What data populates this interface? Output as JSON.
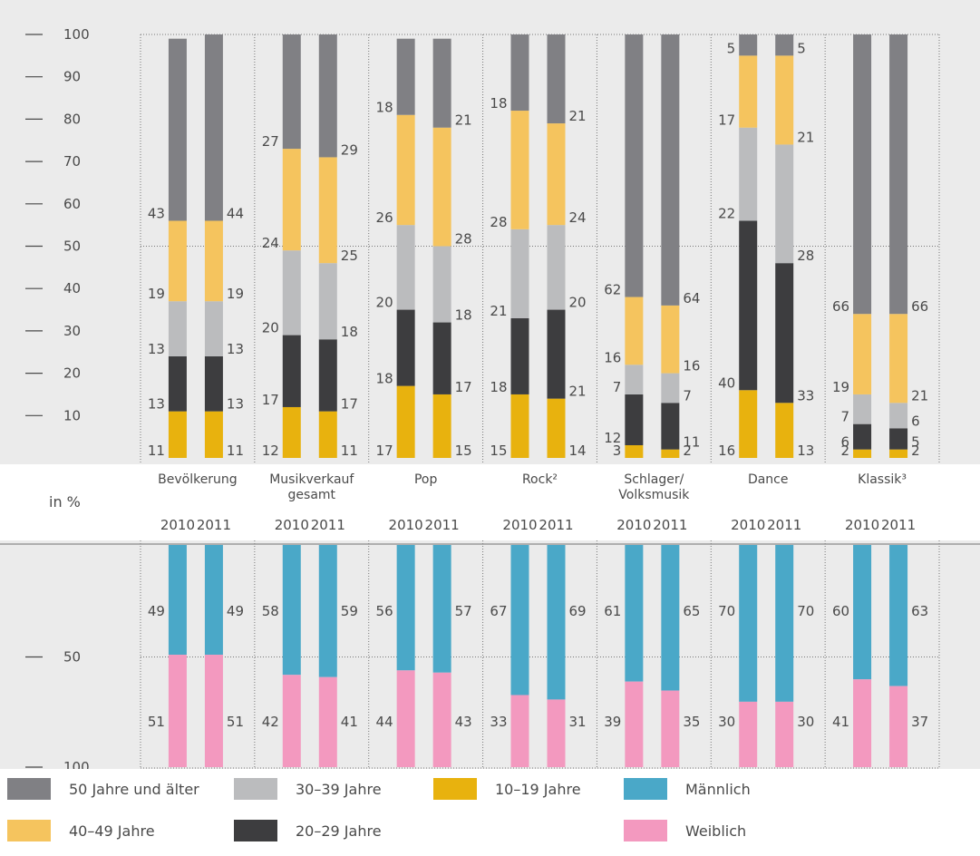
{
  "chart_data": {
    "type": "bar",
    "ylabel": "in %",
    "ylim": [
      0,
      100
    ],
    "age_yticks": [
      "100",
      "90",
      "80",
      "70",
      "60",
      "50",
      "40",
      "30",
      "20",
      "10"
    ],
    "gender_yticks": [
      "50",
      "100"
    ],
    "years": [
      "2010",
      "2011"
    ],
    "groups": [
      {
        "name": "Bevölkerung",
        "lines": [
          "Bevölkerung"
        ]
      },
      {
        "name": "Musikverkauf gesamt",
        "lines": [
          "Musikverkauf",
          "gesamt"
        ]
      },
      {
        "name": "Pop",
        "lines": [
          "Pop"
        ]
      },
      {
        "name": "Rock²",
        "lines": [
          "Rock²"
        ]
      },
      {
        "name": "Schlager/ Volksmusik",
        "lines": [
          "Schlager/",
          "Volksmusik"
        ]
      },
      {
        "name": "Dance",
        "lines": [
          "Dance"
        ]
      },
      {
        "name": "Klassik³",
        "lines": [
          "Klassik³"
        ]
      }
    ],
    "age_series": [
      {
        "name": "10–19 Jahre",
        "color": "#e8b20e",
        "values": [
          [
            11,
            11
          ],
          [
            12,
            11
          ],
          [
            17,
            15
          ],
          [
            15,
            14
          ],
          [
            3,
            2
          ],
          [
            16,
            13
          ],
          [
            2,
            2
          ]
        ]
      },
      {
        "name": "20–29 Jahre",
        "color": "#3d3d3f",
        "values": [
          [
            13,
            13
          ],
          [
            17,
            17
          ],
          [
            18,
            17
          ],
          [
            18,
            21
          ],
          [
            12,
            11
          ],
          [
            40,
            33
          ],
          [
            6,
            5
          ]
        ]
      },
      {
        "name": "30–39 Jahre",
        "color": "#bbbcbe",
        "values": [
          [
            13,
            13
          ],
          [
            20,
            18
          ],
          [
            20,
            18
          ],
          [
            21,
            20
          ],
          [
            7,
            7
          ],
          [
            22,
            28
          ],
          [
            7,
            6
          ]
        ]
      },
      {
        "name": "40–49 Jahre",
        "color": "#f5c45e",
        "values": [
          [
            19,
            19
          ],
          [
            24,
            25
          ],
          [
            26,
            28
          ],
          [
            28,
            24
          ],
          [
            16,
            16
          ],
          [
            17,
            21
          ],
          [
            19,
            21
          ]
        ]
      },
      {
        "name": "50 Jahre und älter",
        "color": "#808084",
        "values": [
          [
            43,
            44
          ],
          [
            27,
            29
          ],
          [
            18,
            21
          ],
          [
            18,
            21
          ],
          [
            62,
            64
          ],
          [
            5,
            5
          ],
          [
            66,
            66
          ]
        ]
      }
    ],
    "gender_series": [
      {
        "name": "Männlich",
        "color": "#4aa8c8",
        "values": [
          [
            49,
            49
          ],
          [
            58,
            59
          ],
          [
            56,
            57
          ],
          [
            67,
            69
          ],
          [
            61,
            65
          ],
          [
            70,
            70
          ],
          [
            60,
            63
          ]
        ]
      },
      {
        "name": "Weiblich",
        "color": "#f399bf",
        "values": [
          [
            51,
            51
          ],
          [
            42,
            41
          ],
          [
            44,
            43
          ],
          [
            33,
            31
          ],
          [
            39,
            35
          ],
          [
            30,
            30
          ],
          [
            41,
            37
          ]
        ]
      }
    ]
  },
  "legend": [
    {
      "label": "50 Jahre und älter",
      "color": "#808084"
    },
    {
      "label": "40–49 Jahre",
      "color": "#f5c45e"
    },
    {
      "label": "30–39 Jahre",
      "color": "#bbbcbe"
    },
    {
      "label": "20–29 Jahre",
      "color": "#3d3d3f"
    },
    {
      "label": "10–19 Jahre",
      "color": "#e8b20e"
    },
    {
      "label": "Männlich",
      "color": "#4aa8c8"
    },
    {
      "label": "Weiblich",
      "color": "#f399bf"
    }
  ]
}
